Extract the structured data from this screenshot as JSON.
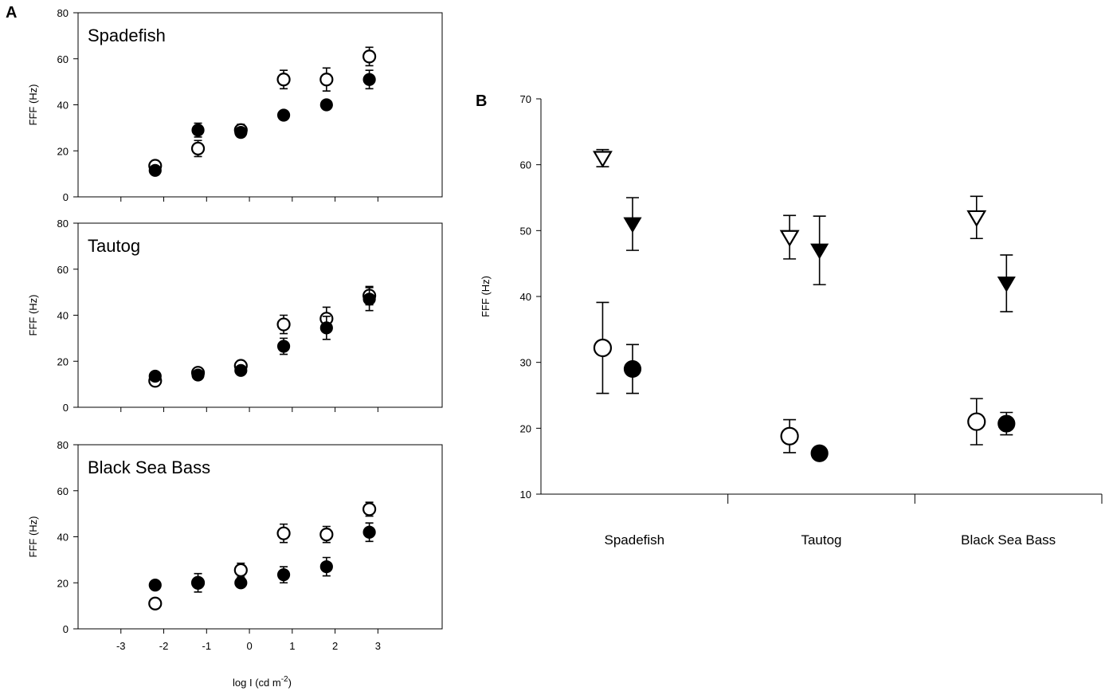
{
  "panel_a": {
    "letter": "A",
    "xlabel": "log I (cd m",
    "xlabel_sup": "-2",
    "xlabel_end": ")",
    "xticks": [
      "-3",
      "-2",
      "-1",
      "0",
      "1",
      "2",
      "3"
    ],
    "ylabel": "FFF (Hz)",
    "yticks": [
      "0",
      "20",
      "40",
      "60",
      "80"
    ]
  },
  "panel_b": {
    "letter": "B",
    "ylabel": "FFF (Hz)",
    "yticks": [
      "10",
      "20",
      "30",
      "40",
      "50",
      "60",
      "70"
    ]
  },
  "chart_data": [
    {
      "type": "scatter",
      "title": "Spadefish",
      "xlabel": "log I (cd m-2)",
      "ylabel": "FFF (Hz)",
      "xlim": [
        -4,
        4.5
      ],
      "ylim": [
        0,
        80
      ],
      "series": [
        {
          "marker": "open-circle",
          "x": [
            -2.2,
            -1.2,
            -0.2,
            0.8,
            1.8,
            2.8
          ],
          "y": [
            13.5,
            21,
            29,
            51,
            51,
            61
          ],
          "err": [
            1.5,
            3.5,
            2.5,
            4,
            5,
            4
          ]
        },
        {
          "marker": "filled-circle",
          "x": [
            -2.2,
            -1.2,
            -0.2,
            0.8,
            1.8,
            2.8
          ],
          "y": [
            11.5,
            29,
            28,
            35.5,
            40,
            51
          ],
          "err": [
            1,
            3,
            2,
            1,
            1,
            4
          ]
        }
      ]
    },
    {
      "type": "scatter",
      "title": "Tautog",
      "xlabel": "log I (cd m-2)",
      "ylabel": "FFF (Hz)",
      "xlim": [
        -4,
        4.5
      ],
      "ylim": [
        0,
        80
      ],
      "series": [
        {
          "marker": "open-circle",
          "x": [
            -2.2,
            -1.2,
            -0.2,
            0.8,
            1.8,
            2.8
          ],
          "y": [
            11.5,
            15,
            18,
            36,
            38.5,
            48.5
          ],
          "err": [
            1,
            1,
            1.5,
            4,
            5,
            4
          ]
        },
        {
          "marker": "filled-circle",
          "x": [
            -2.2,
            -1.2,
            -0.2,
            0.8,
            1.8,
            2.8
          ],
          "y": [
            13.5,
            14,
            16,
            26.5,
            34.5,
            47
          ],
          "err": [
            1,
            1,
            1,
            3.5,
            5,
            5
          ]
        }
      ]
    },
    {
      "type": "scatter",
      "title": "Black Sea Bass",
      "xlabel": "log I (cd m-2)",
      "ylabel": "FFF (Hz)",
      "xlim": [
        -4,
        4.5
      ],
      "ylim": [
        0,
        80
      ],
      "series": [
        {
          "marker": "open-circle",
          "x": [
            -2.2,
            -1.2,
            -0.2,
            0.8,
            1.8,
            2.8
          ],
          "y": [
            11,
            20,
            25.5,
            41.5,
            41,
            52
          ],
          "err": [
            0.5,
            0.5,
            3,
            4,
            3.5,
            3
          ]
        },
        {
          "marker": "filled-circle",
          "x": [
            -2.2,
            -1.2,
            -0.2,
            0.8,
            1.8,
            2.8
          ],
          "y": [
            19,
            20,
            20,
            23.5,
            27,
            42
          ],
          "err": [
            0.5,
            4,
            0.5,
            3.5,
            4,
            4
          ]
        }
      ]
    },
    {
      "type": "scatter",
      "title": "",
      "ylabel": "FFF (Hz)",
      "ylim": [
        10,
        70
      ],
      "categories": [
        "Spadefish",
        "Tautog",
        "Black Sea Bass"
      ],
      "series": [
        {
          "marker": "open-triangle-down",
          "position": 1,
          "values": [
            61,
            49,
            52
          ],
          "err": [
            1.3,
            3.3,
            3.2
          ]
        },
        {
          "marker": "filled-triangle-down",
          "position": 2,
          "values": [
            51,
            47,
            42
          ],
          "err": [
            4,
            5.2,
            4.3
          ]
        },
        {
          "marker": "open-circle",
          "position": 1,
          "values": [
            32.2,
            18.8,
            21
          ],
          "err": [
            6.9,
            2.5,
            3.5
          ]
        },
        {
          "marker": "filled-circle",
          "position": 2,
          "values": [
            29,
            16.2,
            20.7
          ],
          "err": [
            3.7,
            0.7,
            1.7
          ]
        }
      ]
    }
  ]
}
